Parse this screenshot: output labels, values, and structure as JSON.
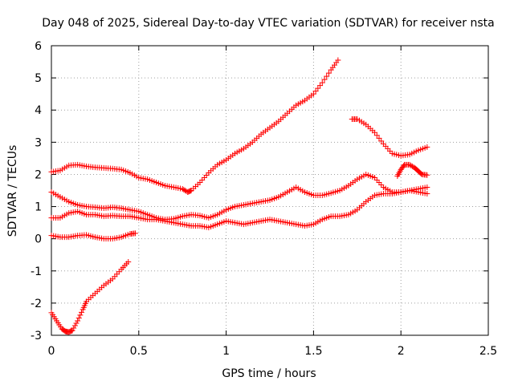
{
  "chart_data": {
    "type": "scatter",
    "title": "Day 048 of 2025, Sidereal Day-to-day VTEC variation (SDTVAR) for receiver nsta",
    "xlabel": "GPS time / hours",
    "ylabel": "SDTVAR / TECUs",
    "xlim": [
      0,
      2.5
    ],
    "ylim": [
      -3,
      6
    ],
    "xticks": [
      0,
      0.5,
      1,
      1.5,
      2,
      2.5
    ],
    "yticks": [
      -3,
      -2,
      -1,
      0,
      1,
      2,
      3,
      4,
      5,
      6
    ],
    "xtick_labels": [
      "0",
      "0.5",
      "1",
      "1.5",
      "2",
      "2.5"
    ],
    "ytick_labels": [
      "-3",
      "-2",
      "-1",
      "0",
      "1",
      "2",
      "3",
      "4",
      "5",
      "6"
    ],
    "grid": true,
    "marker": "+",
    "marker_color": "#ff0000",
    "series": [
      {
        "x": [
          0.0,
          0.05,
          0.1,
          0.15,
          0.2,
          0.25,
          0.3,
          0.35,
          0.4,
          0.45,
          0.5,
          0.55,
          0.6,
          0.65,
          0.7,
          0.75,
          0.78,
          0.8,
          0.85,
          0.9,
          0.95,
          1.0,
          1.05,
          1.1,
          1.15,
          1.2,
          1.25,
          1.3,
          1.35,
          1.4,
          1.45,
          1.5,
          1.55,
          1.6,
          1.64
        ],
        "y": [
          2.08,
          2.12,
          2.28,
          2.3,
          2.25,
          2.22,
          2.2,
          2.18,
          2.15,
          2.05,
          1.9,
          1.85,
          1.75,
          1.65,
          1.6,
          1.55,
          1.45,
          1.5,
          1.75,
          2.05,
          2.3,
          2.45,
          2.65,
          2.8,
          3.0,
          3.25,
          3.45,
          3.65,
          3.9,
          4.15,
          4.3,
          4.5,
          4.85,
          5.25,
          5.55
        ]
      },
      {
        "x": [
          1.72,
          1.75,
          1.8,
          1.85,
          1.9,
          1.95,
          2.0,
          2.05,
          2.1,
          2.15
        ],
        "y": [
          3.72,
          3.72,
          3.55,
          3.3,
          2.95,
          2.65,
          2.58,
          2.62,
          2.75,
          2.85
        ]
      },
      {
        "x": [
          0.0,
          0.05,
          0.1,
          0.15,
          0.2,
          0.25,
          0.3,
          0.35,
          0.4,
          0.45,
          0.5,
          0.55,
          0.6,
          0.65,
          0.7,
          0.75,
          0.8,
          0.85,
          0.9,
          0.95,
          1.0,
          1.05,
          1.1,
          1.15,
          1.2,
          1.25,
          1.3,
          1.35,
          1.4,
          1.45,
          1.5,
          1.55,
          1.6,
          1.65,
          1.7,
          1.75,
          1.8,
          1.85,
          1.9,
          1.95,
          2.0,
          2.05,
          2.1,
          2.15
        ],
        "y": [
          1.45,
          1.3,
          1.15,
          1.05,
          1.0,
          0.98,
          0.95,
          0.98,
          0.95,
          0.9,
          0.85,
          0.75,
          0.65,
          0.6,
          0.62,
          0.7,
          0.75,
          0.72,
          0.65,
          0.75,
          0.9,
          1.0,
          1.05,
          1.1,
          1.15,
          1.2,
          1.3,
          1.45,
          1.6,
          1.45,
          1.35,
          1.35,
          1.42,
          1.5,
          1.65,
          1.85,
          2.0,
          1.9,
          1.6,
          1.45,
          1.45,
          1.5,
          1.55,
          1.6
        ]
      },
      {
        "x": [
          0.0,
          0.05,
          0.1,
          0.15,
          0.2,
          0.25,
          0.3,
          0.35,
          0.4,
          0.45,
          0.5,
          0.55,
          0.6,
          0.65,
          0.7,
          0.75,
          0.8,
          0.85,
          0.9,
          0.95,
          1.0,
          1.05,
          1.1,
          1.15,
          1.2,
          1.25,
          1.3,
          1.35,
          1.4,
          1.45,
          1.5,
          1.55,
          1.6,
          1.65,
          1.7,
          1.75,
          1.8,
          1.85,
          1.9,
          1.95,
          2.0,
          2.05,
          2.1,
          2.15
        ],
        "y": [
          0.65,
          0.65,
          0.8,
          0.85,
          0.75,
          0.75,
          0.7,
          0.72,
          0.7,
          0.7,
          0.65,
          0.6,
          0.6,
          0.55,
          0.5,
          0.45,
          0.4,
          0.4,
          0.35,
          0.45,
          0.55,
          0.5,
          0.45,
          0.5,
          0.55,
          0.6,
          0.55,
          0.5,
          0.45,
          0.4,
          0.45,
          0.6,
          0.7,
          0.7,
          0.75,
          0.9,
          1.15,
          1.35,
          1.4,
          1.4,
          1.45,
          1.5,
          1.45,
          1.4
        ]
      },
      {
        "x": [
          1.98,
          2.0,
          2.02,
          2.05,
          2.08,
          2.1,
          2.12,
          2.15
        ],
        "y": [
          1.95,
          2.15,
          2.3,
          2.3,
          2.2,
          2.1,
          2.0,
          1.98
        ]
      },
      {
        "x": [
          0.0,
          0.05,
          0.1,
          0.15,
          0.2,
          0.25,
          0.3,
          0.35,
          0.4,
          0.45,
          0.48
        ],
        "y": [
          0.1,
          0.05,
          0.05,
          0.1,
          0.12,
          0.05,
          0.0,
          0.0,
          0.05,
          0.15,
          0.17
        ]
      },
      {
        "x": [
          0.0,
          0.03,
          0.06,
          0.08,
          0.1,
          0.12,
          0.15,
          0.18,
          0.2,
          0.25,
          0.3,
          0.35,
          0.4,
          0.44
        ],
        "y": [
          -2.3,
          -2.55,
          -2.8,
          -2.88,
          -2.9,
          -2.85,
          -2.55,
          -2.2,
          -1.95,
          -1.7,
          -1.45,
          -1.25,
          -0.95,
          -0.72
        ]
      }
    ]
  }
}
